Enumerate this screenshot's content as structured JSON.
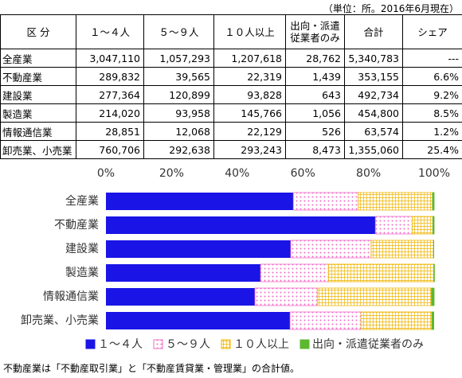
{
  "note": "（単位：所。2016年6月現在）",
  "table": {
    "header": [
      "区 分",
      "１～４人",
      "５～９人",
      "１０人以上",
      "出向・派遣\n従業者のみ",
      "合計",
      "シェア"
    ],
    "rows": [
      [
        "全産業",
        "3,047,110",
        "1,057,293",
        "1,207,618",
        "28,762",
        "5,340,783",
        "---"
      ],
      [
        "不動産業",
        "289,832",
        "39,565",
        "22,319",
        "1,439",
        "353,155",
        "6.6%"
      ],
      [
        "建設業",
        "277,364",
        "120,899",
        "93,828",
        "643",
        "492,734",
        "9.2%"
      ],
      [
        "製造業",
        "214,020",
        "93,958",
        "145,766",
        "1,056",
        "454,800",
        "8.5%"
      ],
      [
        "情報通信業",
        "28,851",
        "12,068",
        "22,129",
        "526",
        "63,574",
        "1.2%"
      ],
      [
        "卸売業、小売業",
        "760,706",
        "292,638",
        "293,243",
        "8,473",
        "1,355,060",
        "25.4%"
      ]
    ]
  },
  "chart_data": {
    "type": "stacked_bar_horizontal",
    "categories": [
      "全産業",
      "不動産業",
      "建設業",
      "製造業",
      "情報通信業",
      "卸売業、小売業"
    ],
    "series": [
      {
        "name": "１～４人",
        "color": "#1a14e6",
        "values": [
          57.1,
          82.1,
          56.3,
          47.1,
          45.4,
          56.1
        ]
      },
      {
        "name": "５～９人",
        "color": "#f06ec8",
        "values": [
          19.8,
          11.2,
          24.5,
          20.7,
          19.0,
          21.6
        ]
      },
      {
        "name": "１０人以上",
        "color": "#f0b400",
        "values": [
          22.6,
          6.3,
          19.0,
          32.1,
          34.8,
          21.6
        ]
      },
      {
        "name": "出向・派遣従業者のみ",
        "color": "#5cb82e",
        "values": [
          0.5,
          0.4,
          0.1,
          0.2,
          0.8,
          0.6
        ]
      }
    ],
    "xlim": [
      0,
      100
    ],
    "xticks": [
      {
        "value": 0,
        "label": "0%"
      },
      {
        "value": 20,
        "label": "20%"
      },
      {
        "value": 40,
        "label": "40%"
      },
      {
        "value": 60,
        "label": "60%"
      },
      {
        "value": 80,
        "label": "80%"
      },
      {
        "value": 100,
        "label": "100%"
      }
    ]
  },
  "footnote": "不動産業は「不動産取引業」と「不動産賃貸業・管理業」の合計値。"
}
